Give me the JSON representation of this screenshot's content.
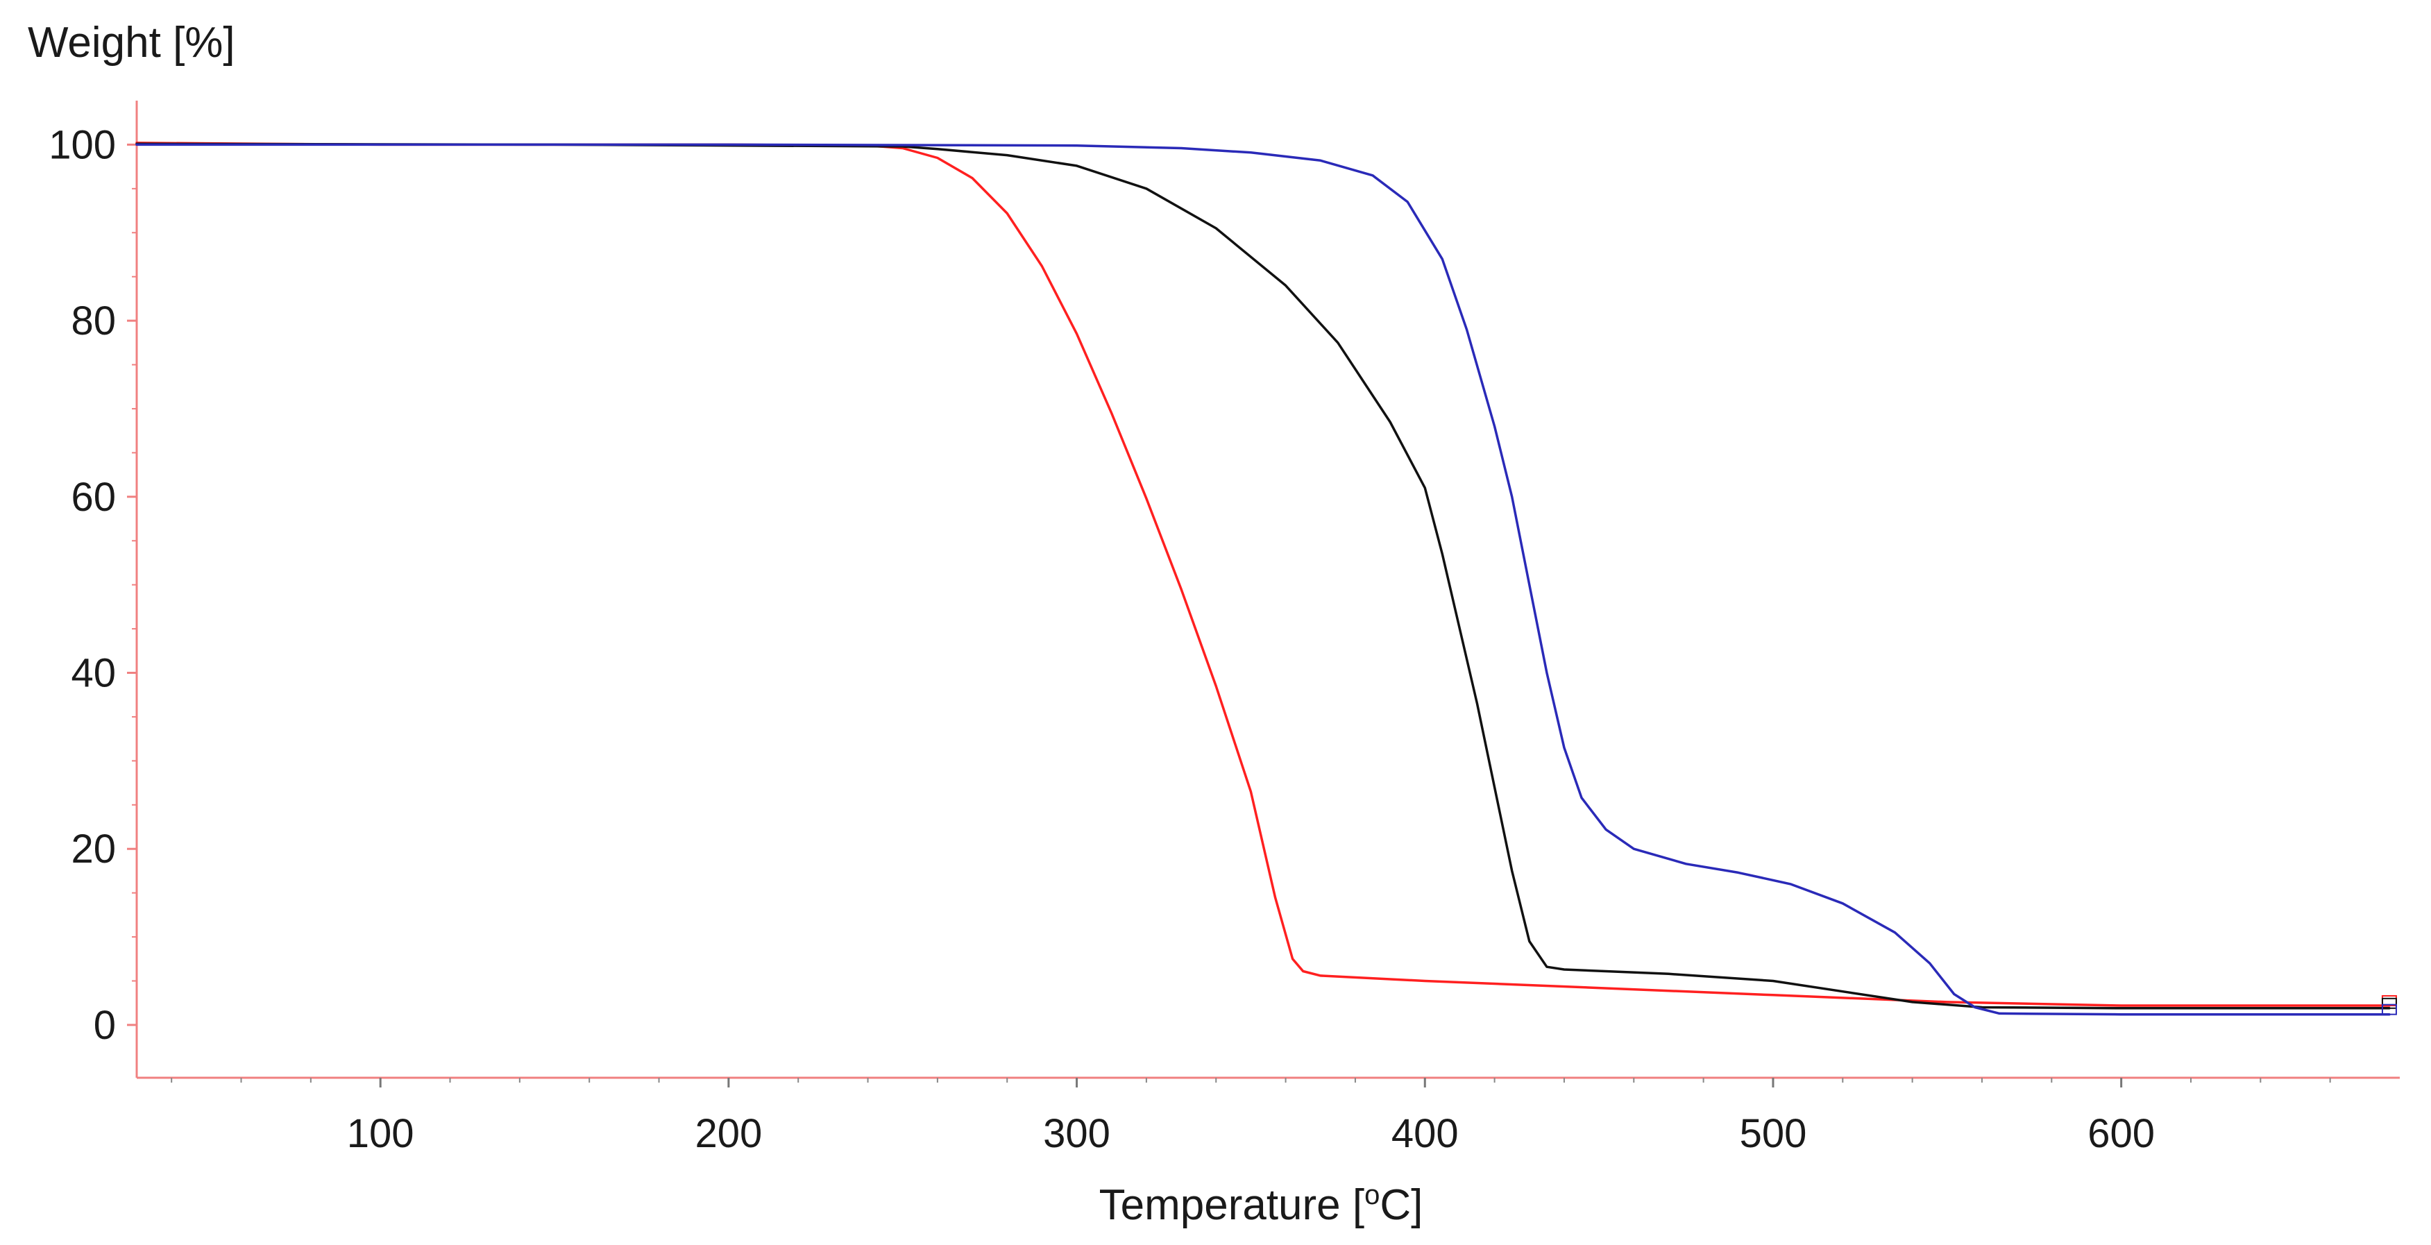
{
  "chart_data": {
    "type": "line",
    "title": "",
    "xlabel": "Temperature [oC]",
    "xlabel_main": "Temperature [",
    "xlabel_sup": "o",
    "xlabel_end": "C]",
    "ylabel": "Weight [%]",
    "xlim": [
      30,
      680
    ],
    "ylim": [
      -6,
      105
    ],
    "x_ticks": [
      100,
      200,
      300,
      400,
      500,
      600
    ],
    "y_ticks": [
      0,
      20,
      40,
      60,
      80,
      100
    ],
    "grid": false,
    "legend": "none",
    "axis_color": "#f08080",
    "series": [
      {
        "color": "#ff2020",
        "points": [
          [
            30,
            100.2
          ],
          [
            100,
            100.0
          ],
          [
            200,
            100.0
          ],
          [
            240,
            99.9
          ],
          [
            250,
            99.6
          ],
          [
            260,
            98.5
          ],
          [
            270,
            96.2
          ],
          [
            280,
            92.2
          ],
          [
            290,
            86.2
          ],
          [
            300,
            78.5
          ],
          [
            310,
            69.5
          ],
          [
            320,
            59.8
          ],
          [
            330,
            49.5
          ],
          [
            340,
            38.5
          ],
          [
            350,
            26.5
          ],
          [
            357,
            14.5
          ],
          [
            362,
            7.5
          ],
          [
            365,
            6.1
          ],
          [
            370,
            5.6
          ],
          [
            400,
            5.0
          ],
          [
            450,
            4.2
          ],
          [
            500,
            3.4
          ],
          [
            550,
            2.6
          ],
          [
            600,
            2.2
          ],
          [
            677,
            2.2
          ]
        ]
      },
      {
        "color": "#111111",
        "points": [
          [
            30,
            100.1
          ],
          [
            150,
            100.0
          ],
          [
            250,
            99.8
          ],
          [
            260,
            99.5
          ],
          [
            280,
            98.8
          ],
          [
            300,
            97.6
          ],
          [
            320,
            95.0
          ],
          [
            340,
            90.5
          ],
          [
            360,
            84.0
          ],
          [
            375,
            77.5
          ],
          [
            390,
            68.5
          ],
          [
            400,
            61.0
          ],
          [
            405,
            53.5
          ],
          [
            410,
            45.0
          ],
          [
            415,
            36.5
          ],
          [
            420,
            27.0
          ],
          [
            425,
            17.5
          ],
          [
            430,
            9.5
          ],
          [
            435,
            6.6
          ],
          [
            440,
            6.3
          ],
          [
            470,
            5.8
          ],
          [
            500,
            5.0
          ],
          [
            520,
            3.8
          ],
          [
            540,
            2.6
          ],
          [
            560,
            2.0
          ],
          [
            600,
            1.9
          ],
          [
            677,
            1.9
          ]
        ]
      },
      {
        "color": "#2a2ab8",
        "points": [
          [
            30,
            100.0
          ],
          [
            200,
            100.0
          ],
          [
            300,
            99.9
          ],
          [
            330,
            99.6
          ],
          [
            350,
            99.1
          ],
          [
            370,
            98.2
          ],
          [
            385,
            96.5
          ],
          [
            395,
            93.5
          ],
          [
            405,
            87.0
          ],
          [
            412,
            79.0
          ],
          [
            420,
            68.0
          ],
          [
            425,
            60.0
          ],
          [
            430,
            50.0
          ],
          [
            435,
            40.0
          ],
          [
            440,
            31.5
          ],
          [
            445,
            25.8
          ],
          [
            452,
            22.2
          ],
          [
            460,
            20.0
          ],
          [
            475,
            18.3
          ],
          [
            490,
            17.3
          ],
          [
            505,
            16.0
          ],
          [
            520,
            13.8
          ],
          [
            535,
            10.5
          ],
          [
            545,
            7.0
          ],
          [
            552,
            3.5
          ],
          [
            558,
            2.0
          ],
          [
            565,
            1.3
          ],
          [
            600,
            1.2
          ],
          [
            677,
            1.2
          ]
        ]
      }
    ]
  }
}
